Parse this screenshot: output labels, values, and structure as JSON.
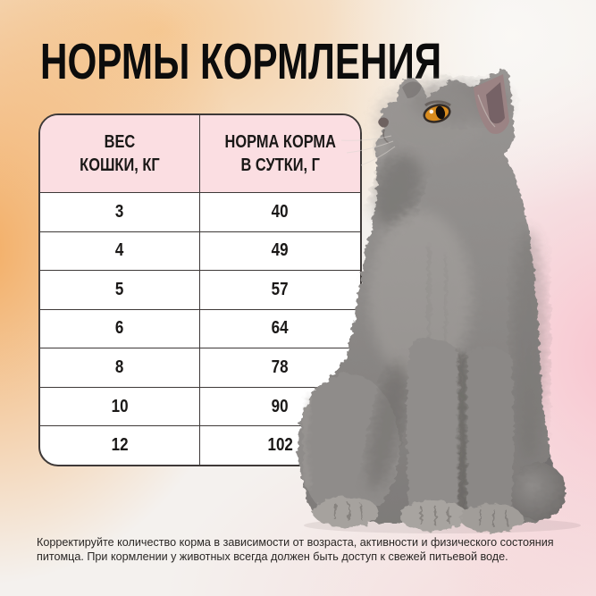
{
  "title": "НОРМЫ КОРМЛЕНИЯ",
  "table": {
    "headers": [
      {
        "line1": "ВЕС",
        "line2": "КОШКИ, КГ"
      },
      {
        "line1": "НОРМА КОРМА",
        "line2": "В СУТКИ, Г"
      }
    ],
    "rows": [
      {
        "weight": "3",
        "food": "40"
      },
      {
        "weight": "4",
        "food": "49"
      },
      {
        "weight": "5",
        "food": "57"
      },
      {
        "weight": "6",
        "food": "64"
      },
      {
        "weight": "8",
        "food": "78"
      },
      {
        "weight": "10",
        "food": "90"
      },
      {
        "weight": "12",
        "food": "102"
      }
    ]
  },
  "footnote": {
    "line1": "Корректируйте количество корма в зависимости от возраста, активности и физического состояния",
    "line2": "питомца. При кормлении у животных всегда должен быть доступ к свежей питьевой воде."
  },
  "image": {
    "alt": "grey-british-shorthair-cat-looking-up"
  },
  "colors": {
    "header_pink": "#fbdee2",
    "border_dark": "#3e3938",
    "accent_orange": "#f3ab5f",
    "accent_pink": "#f9c3ce",
    "title_black": "#0c0c0c",
    "cat_gray": "#8e8b89",
    "eye_orange": "#d98c1e"
  }
}
